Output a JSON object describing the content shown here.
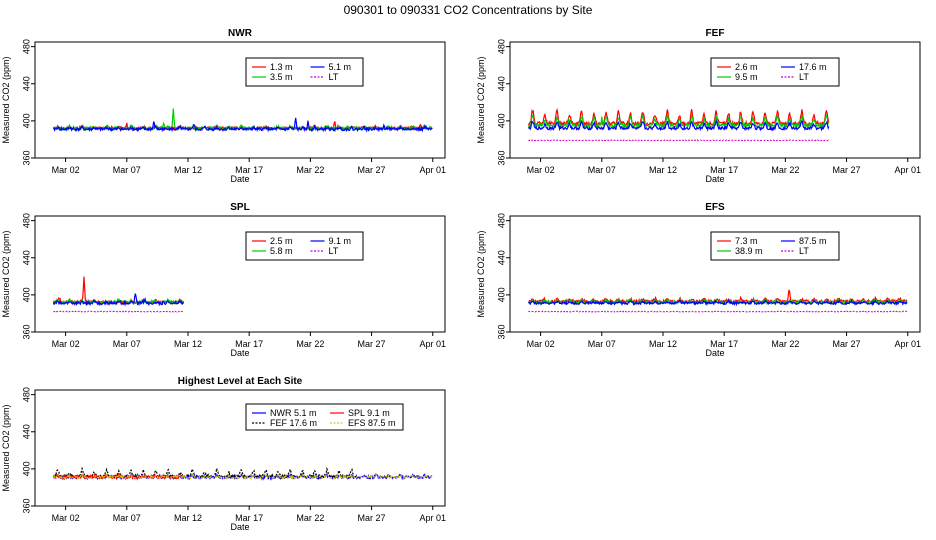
{
  "page_title": "090301  to  090331 CO2 Concentrations by Site",
  "colors": {
    "red": "#ff0000",
    "green": "#00cc00",
    "blue": "#0000ff",
    "magenta": "#cc00cc",
    "black": "#000000",
    "yellow": "#e6c800"
  },
  "chart_data": [
    {
      "type": "line",
      "title": "NWR",
      "xlabel": "Date",
      "ylabel": "Measured CO2 (ppm)",
      "ylim": [
        360,
        485
      ],
      "yticks": [
        360,
        400,
        440,
        480
      ],
      "xlim": [
        -1.5,
        32
      ],
      "xticks": [
        {
          "v": 1,
          "label": "Mar 02"
        },
        {
          "v": 6,
          "label": "Mar 07"
        },
        {
          "v": 11,
          "label": "Mar 12"
        },
        {
          "v": 16,
          "label": "Mar 17"
        },
        {
          "v": 21,
          "label": "Mar 22"
        },
        {
          "v": 26,
          "label": "Mar 27"
        },
        {
          "v": 31,
          "label": "Apr 01"
        }
      ],
      "legend_layout": "2x2",
      "series": [
        {
          "name": "1.3 m",
          "color": "#ff0000",
          "style": "solid",
          "base": 392,
          "amp": 2,
          "noise": 1.5,
          "end": 31,
          "spikes": [
            [
              6,
              6
            ],
            [
              23,
              7
            ],
            [
              30,
              4
            ]
          ]
        },
        {
          "name": "3.5 m",
          "color": "#00cc00",
          "style": "solid",
          "base": 392,
          "amp": 2,
          "noise": 1.5,
          "end": 31,
          "spikes": [
            [
              9.8,
              22
            ],
            [
              9,
              4
            ]
          ]
        },
        {
          "name": "5.1 m",
          "color": "#0000ff",
          "style": "solid",
          "base": 391,
          "amp": 2,
          "noise": 1.5,
          "end": 31,
          "spikes": [
            [
              8.2,
              7
            ],
            [
              11.5,
              5
            ],
            [
              19.8,
              12
            ],
            [
              20.8,
              8
            ],
            [
              27,
              4
            ]
          ]
        },
        {
          "name": "LT",
          "color": "#cc00cc",
          "style": "dashed",
          "base": 0,
          "amp": 0,
          "noise": 0,
          "end": -99,
          "spikes": []
        }
      ]
    },
    {
      "type": "line",
      "title": "FEF",
      "xlabel": "Date",
      "ylabel": "Measured CO2 (ppm)",
      "ylim": [
        360,
        485
      ],
      "yticks": [
        360,
        400,
        440,
        480
      ],
      "xlim": [
        -1.5,
        32
      ],
      "xticks": [
        {
          "v": 1,
          "label": "Mar 02"
        },
        {
          "v": 6,
          "label": "Mar 07"
        },
        {
          "v": 11,
          "label": "Mar 12"
        },
        {
          "v": 16,
          "label": "Mar 17"
        },
        {
          "v": 21,
          "label": "Mar 22"
        },
        {
          "v": 26,
          "label": "Mar 27"
        },
        {
          "v": 31,
          "label": "Apr 01"
        }
      ],
      "legend_layout": "2x2",
      "series": [
        {
          "name": "2.6 m",
          "color": "#ff0000",
          "style": "solid",
          "base": 397,
          "amp": 14,
          "noise": 2,
          "end": 24.6,
          "spikes": []
        },
        {
          "name": "9.5 m",
          "color": "#00cc00",
          "style": "solid",
          "base": 395,
          "amp": 10,
          "noise": 2,
          "end": 24.6,
          "spikes": [
            [
              6,
              8
            ]
          ]
        },
        {
          "name": "17.6 m",
          "color": "#0000ff",
          "style": "solid",
          "base": 392,
          "amp": 7,
          "noise": 1.5,
          "end": 24.6,
          "spikes": []
        },
        {
          "name": "LT",
          "color": "#cc00cc",
          "style": "dashed",
          "base": 379,
          "amp": 0,
          "noise": 0.4,
          "end": 24.6,
          "spikes": []
        }
      ]
    },
    {
      "type": "line",
      "title": "SPL",
      "xlabel": "Date",
      "ylabel": "Measured CO2 (ppm)",
      "ylim": [
        360,
        485
      ],
      "yticks": [
        360,
        400,
        440,
        480
      ],
      "xlim": [
        -1.5,
        32
      ],
      "xticks": [
        {
          "v": 1,
          "label": "Mar 02"
        },
        {
          "v": 6,
          "label": "Mar 07"
        },
        {
          "v": 11,
          "label": "Mar 12"
        },
        {
          "v": 16,
          "label": "Mar 17"
        },
        {
          "v": 21,
          "label": "Mar 22"
        },
        {
          "v": 26,
          "label": "Mar 27"
        },
        {
          "v": 31,
          "label": "Apr 01"
        }
      ],
      "legend_layout": "2x2",
      "series": [
        {
          "name": "2.5 m",
          "color": "#ff0000",
          "style": "solid",
          "base": 392,
          "amp": 2,
          "noise": 1.5,
          "end": 10.7,
          "spikes": [
            [
              0.5,
              5
            ],
            [
              2.5,
              26
            ]
          ]
        },
        {
          "name": "5.8 m",
          "color": "#00cc00",
          "style": "solid",
          "base": 392,
          "amp": 2,
          "noise": 1.5,
          "end": 10.7,
          "spikes": []
        },
        {
          "name": "9.1 m",
          "color": "#0000ff",
          "style": "solid",
          "base": 391,
          "amp": 2,
          "noise": 1.5,
          "end": 10.7,
          "spikes": [
            [
              6.7,
              11
            ],
            [
              7.5,
              5
            ]
          ]
        },
        {
          "name": "LT",
          "color": "#cc00cc",
          "style": "dashed",
          "base": 382,
          "amp": 0,
          "noise": 0.4,
          "end": 10.7,
          "spikes": []
        }
      ]
    },
    {
      "type": "line",
      "title": "EFS",
      "xlabel": "Date",
      "ylabel": "Measured CO2 (ppm)",
      "ylim": [
        360,
        485
      ],
      "yticks": [
        360,
        400,
        440,
        480
      ],
      "xlim": [
        -1.5,
        32
      ],
      "xticks": [
        {
          "v": 1,
          "label": "Mar 02"
        },
        {
          "v": 6,
          "label": "Mar 07"
        },
        {
          "v": 11,
          "label": "Mar 12"
        },
        {
          "v": 16,
          "label": "Mar 17"
        },
        {
          "v": 21,
          "label": "Mar 22"
        },
        {
          "v": 26,
          "label": "Mar 27"
        },
        {
          "v": 31,
          "label": "Apr 01"
        }
      ],
      "legend_layout": "2x2",
      "series": [
        {
          "name": "7.3 m",
          "color": "#ff0000",
          "style": "solid",
          "base": 393,
          "amp": 3,
          "noise": 1.5,
          "end": 31,
          "spikes": [
            [
              21.3,
              10
            ]
          ]
        },
        {
          "name": "38.9 m",
          "color": "#00cc00",
          "style": "solid",
          "base": 392,
          "amp": 2,
          "noise": 1.5,
          "end": 31,
          "spikes": []
        },
        {
          "name": "87.5 m",
          "color": "#0000ff",
          "style": "solid",
          "base": 391,
          "amp": 2,
          "noise": 1.2,
          "end": 31,
          "spikes": []
        },
        {
          "name": "LT",
          "color": "#cc00cc",
          "style": "dashed",
          "base": 382,
          "amp": 0,
          "noise": 0.4,
          "end": 31,
          "spikes": []
        }
      ]
    },
    {
      "type": "line",
      "title": "Highest Level at Each Site",
      "xlabel": "Date",
      "ylabel": "Measured CO2 (ppm)",
      "ylim": [
        360,
        485
      ],
      "yticks": [
        360,
        400,
        440,
        480
      ],
      "xlim": [
        -1.5,
        32
      ],
      "xticks": [
        {
          "v": 1,
          "label": "Mar 02"
        },
        {
          "v": 6,
          "label": "Mar 07"
        },
        {
          "v": 11,
          "label": "Mar 12"
        },
        {
          "v": 16,
          "label": "Mar 17"
        },
        {
          "v": 21,
          "label": "Mar 22"
        },
        {
          "v": 26,
          "label": "Mar 27"
        },
        {
          "v": 31,
          "label": "Apr 01"
        }
      ],
      "legend_layout": "site",
      "series": [
        {
          "name": "NWR   5.1 m",
          "color": "#0000ff",
          "style": "solid",
          "base": 391,
          "amp": 2,
          "noise": 1.5,
          "end": 31,
          "spikes": []
        },
        {
          "name": "FEF   17.6 m",
          "color": "#000000",
          "style": "dashed",
          "base": 392,
          "amp": 7,
          "noise": 1.5,
          "end": 24.6,
          "spikes": []
        },
        {
          "name": "SPL   9.1 m",
          "color": "#ff0000",
          "style": "solid",
          "base": 391,
          "amp": 2,
          "noise": 1.5,
          "end": 10.7,
          "spikes": []
        },
        {
          "name": "EFS   87.5 m",
          "color": "#e6c800",
          "style": "dashed",
          "base": 391,
          "amp": 2,
          "noise": 1.2,
          "end": 31,
          "spikes": []
        }
      ]
    }
  ]
}
